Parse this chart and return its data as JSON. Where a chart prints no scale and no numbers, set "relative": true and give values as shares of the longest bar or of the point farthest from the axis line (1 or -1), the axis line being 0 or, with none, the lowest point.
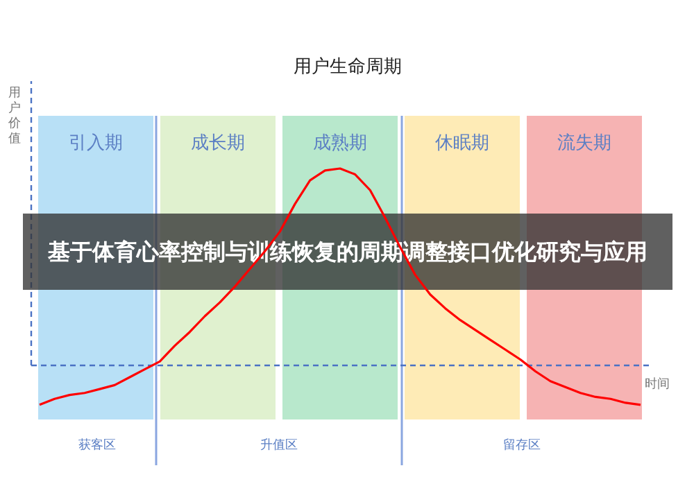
{
  "chart_data": {
    "type": "line",
    "title": "用户生命周期",
    "ylabel": "用户价值",
    "xlabel": "时间",
    "relative": true,
    "categories": [
      null,
      null,
      null,
      null,
      null,
      null,
      null,
      null,
      null,
      null,
      null,
      null,
      null,
      null,
      null,
      null,
      null,
      null,
      null,
      null,
      null,
      null,
      null,
      null,
      null,
      null,
      null,
      null,
      null,
      null,
      null,
      null,
      null,
      null,
      null,
      null,
      null,
      null,
      null,
      null,
      null
    ],
    "series": [
      {
        "color": "#ff0000",
        "values": [
          -0.2,
          -0.17,
          -0.15,
          -0.14,
          -0.12,
          -0.1,
          -0.06,
          -0.02,
          0.02,
          0.1,
          0.17,
          0.25,
          0.32,
          0.4,
          0.49,
          0.58,
          0.68,
          0.82,
          0.94,
          0.99,
          1,
          0.97,
          0.89,
          0.75,
          0.6,
          0.46,
          0.36,
          0.29,
          0.23,
          0.18,
          0.13,
          0.08,
          0.03,
          -0.03,
          -0.08,
          -0.11,
          -0.14,
          -0.16,
          -0.17,
          -0.19,
          -0.2
        ]
      }
    ],
    "ref_lines": [
      {
        "axis": "y",
        "value": 0,
        "label": null,
        "color": "#4a72c4",
        "line_style": "dashed"
      }
    ],
    "annotations": [
      "引入期",
      "成长期",
      "成熟期",
      "休眠期",
      "流失期",
      "获客区",
      "升值区",
      "留存区",
      "基于体育心率控制与训练恢复的周期调整接口优化研究与应用"
    ]
  }
}
